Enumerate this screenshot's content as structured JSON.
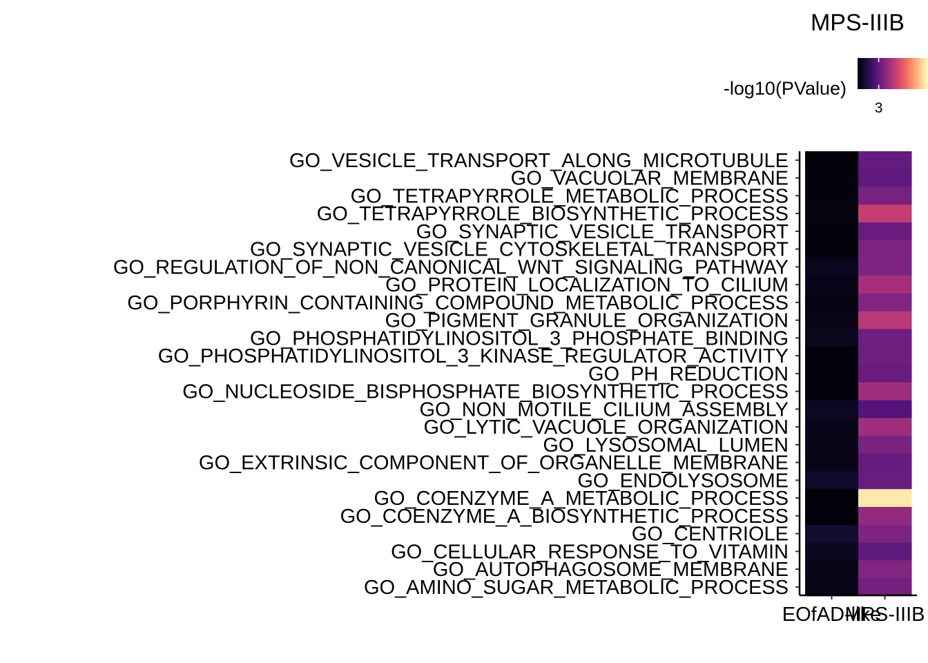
{
  "chart_data": {
    "type": "heatmap",
    "title": "MPS-IIIB",
    "xlabel": "",
    "ylabel": "",
    "x_categories": [
      "EOfAD-like",
      "MPS-IIIB"
    ],
    "y_categories": [
      "GO_VESICLE_TRANSPORT_ALONG_MICROTUBULE",
      "GO_VACUOLAR_MEMBRANE",
      "GO_TETRAPYRROLE_METABOLIC_PROCESS",
      "GO_TETRAPYRROLE_BIOSYNTHETIC_PROCESS",
      "GO_SYNAPTIC_VESICLE_TRANSPORT",
      "GO_SYNAPTIC_VESICLE_CYTOSKELETAL_TRANSPORT",
      "GO_REGULATION_OF_NON_CANONICAL_WNT_SIGNALING_PATHWAY",
      "GO_PROTEIN_LOCALIZATION_TO_CILIUM",
      "GO_PORPHYRIN_CONTAINING_COMPOUND_METABOLIC_PROCESS",
      "GO_PIGMENT_GRANULE_ORGANIZATION",
      "GO_PHOSPHATIDYLINOSITOL_3_PHOSPHATE_BINDING",
      "GO_PHOSPHATIDYLINOSITOL_3_KINASE_REGULATOR_ACTIVITY",
      "GO_PH_REDUCTION",
      "GO_NUCLEOSIDE_BISPHOSPHATE_BIOSYNTHETIC_PROCESS",
      "GO_NON_MOTILE_CILIUM_ASSEMBLY",
      "GO_LYTIC_VACUOLE_ORGANIZATION",
      "GO_LYSOSOMAL_LUMEN",
      "GO_EXTRINSIC_COMPONENT_OF_ORGANELLE_MEMBRANE",
      "GO_ENDOLYSOSOME",
      "GO_COENZYME_A_METABOLIC_PROCESS",
      "GO_COENZYME_A_BIOSYNTHETIC_PROCESS",
      "GO_CENTRIOLE",
      "GO_CELLULAR_RESPONSE_TO_VITAMIN",
      "GO_AUTOPHAGOSOME_MEMBRANE",
      "GO_AMINO_SUGAR_METABOLIC_PROCESS"
    ],
    "values_EOfAD_like": [
      0.15,
      0.2,
      0.2,
      0.22,
      0.2,
      0.15,
      0.5,
      0.4,
      0.3,
      0.35,
      0.5,
      0.1,
      0.1,
      0.15,
      0.6,
      0.45,
      0.45,
      0.35,
      0.8,
      0.1,
      0.1,
      0.9,
      0.55,
      0.45,
      0.35
    ],
    "values_MPS_IIIB": [
      3.05,
      2.95,
      3.55,
      5.4,
      3.2,
      3.7,
      3.7,
      4.6,
      3.8,
      5.1,
      3.3,
      3.3,
      3.2,
      4.5,
      2.6,
      4.5,
      3.6,
      3.1,
      3.2,
      9.6,
      4.2,
      3.7,
      2.95,
      3.8,
      3.45
    ],
    "legend": {
      "title": "-log10(PValue)",
      "ticks": [
        3
      ],
      "range": [
        0,
        10
      ],
      "placement": "top-right",
      "colormap": "magma"
    },
    "grid": false
  }
}
